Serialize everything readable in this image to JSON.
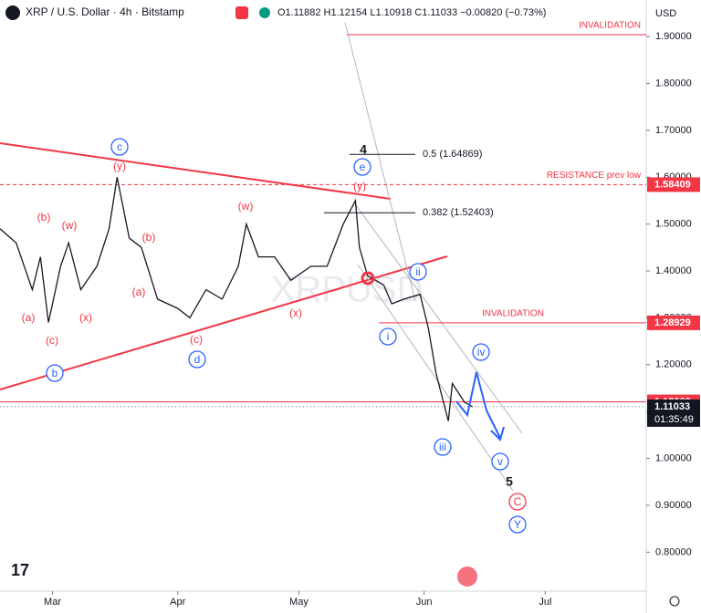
{
  "header": {
    "symbol": "XRP / U.S. Dollar · 4h · Bitstamp",
    "ohlc": "O1.11882 H1.12154 L1.10918 C1.11033 −0.00820 (−0.73%)",
    "watermark": "XRPUSD"
  },
  "chart_data": {
    "type": "line",
    "color": "#131722",
    "x": [
      -13,
      -9,
      -5,
      -3,
      -1,
      2,
      4,
      7,
      11,
      14,
      16,
      19,
      22,
      26,
      31,
      34,
      38,
      42,
      46,
      48,
      51,
      55,
      59,
      64,
      68,
      72,
      75,
      76,
      78,
      82,
      84,
      87,
      91,
      93,
      95,
      98,
      99,
      102,
      104
    ],
    "values": [
      1.49,
      1.46,
      1.36,
      1.43,
      1.29,
      1.41,
      1.46,
      1.36,
      1.41,
      1.49,
      1.6,
      1.47,
      1.45,
      1.34,
      1.32,
      1.3,
      1.36,
      1.34,
      1.41,
      1.5,
      1.43,
      1.43,
      1.38,
      1.41,
      1.41,
      1.5,
      1.55,
      1.45,
      1.39,
      1.37,
      1.33,
      1.34,
      1.35,
      1.28,
      1.18,
      1.08,
      1.16,
      1.12,
      1.11
    ],
    "xlim": [
      -13,
      147
    ],
    "xticks": [
      {
        "value": 0,
        "label": "Mar"
      },
      {
        "value": 31,
        "label": "Apr"
      },
      {
        "value": 61,
        "label": "May"
      },
      {
        "value": 92,
        "label": "Jun"
      },
      {
        "value": 122,
        "label": "Jul"
      }
    ],
    "ylim": [
      0.717,
      1.978
    ],
    "yticks": [
      {
        "value": 1.9,
        "label": "1.90000"
      },
      {
        "value": 1.8,
        "label": "1.80000"
      },
      {
        "value": 1.7,
        "label": "1.70000"
      },
      {
        "value": 1.6,
        "label": "1.60000"
      },
      {
        "value": 1.5,
        "label": "1.50000"
      },
      {
        "value": 1.4,
        "label": "1.40000"
      },
      {
        "value": 1.3,
        "label": "1.30000"
      },
      {
        "value": 1.2,
        "label": "1.20000"
      },
      {
        "value": 1.1,
        "label": "1.10000"
      },
      {
        "value": 1.0,
        "label": "1.00000"
      },
      {
        "value": 0.9,
        "label": "0.90000"
      },
      {
        "value": 0.8,
        "label": "0.80000"
      }
    ],
    "y_axis_label": "USD",
    "levels": [
      {
        "value": 1.904,
        "label": "INVALIDATION",
        "color": "#f23645"
      },
      {
        "value": 1.58409,
        "label": "RESISTANCE prev low",
        "color": "#f23645",
        "badge": true
      },
      {
        "value": 1.28929,
        "label": "INVALIDATION",
        "color": "#f23645",
        "badge": true
      },
      {
        "value": 1.12069,
        "color": "#f23645",
        "badge": true
      },
      {
        "value": 1.11033,
        "color": "#787b86",
        "badge": true,
        "countdown": "01:35:49"
      }
    ],
    "fib": [
      {
        "value": 1.64869,
        "label": "0.5 (1.64869)"
      },
      {
        "value": 1.52403,
        "label": "0.382 (1.52403)"
      }
    ],
    "annotations": [
      {
        "text": "(a)",
        "color": "#f23645"
      },
      {
        "text": "(c)",
        "color": "#f23645"
      },
      {
        "text": "(b)",
        "color": "#f23645"
      },
      {
        "text": "(w)",
        "color": "#f23645"
      },
      {
        "text": "(x)",
        "color": "#f23645"
      },
      {
        "text": "(y)",
        "color": "#f23645"
      },
      {
        "text": "(b)",
        "color": "#f23645"
      },
      {
        "text": "(a)",
        "color": "#f23645"
      },
      {
        "text": "(c)",
        "color": "#f23645"
      },
      {
        "text": "(w)",
        "color": "#f23645"
      },
      {
        "text": "(x)",
        "color": "#f23645"
      },
      {
        "text": "(y)",
        "color": "#f23645"
      },
      {
        "text": "c",
        "color": "#2962ff",
        "circled": true
      },
      {
        "text": "b",
        "color": "#2962ff",
        "circled": true
      },
      {
        "text": "d",
        "color": "#2962ff",
        "circled": true
      },
      {
        "text": "e",
        "color": "#2962ff",
        "circled": true
      },
      {
        "text": "i",
        "color": "#2962ff",
        "circled": true
      },
      {
        "text": "ii",
        "color": "#2962ff",
        "circled": true
      },
      {
        "text": "iii",
        "color": "#2962ff",
        "circled": true
      },
      {
        "text": "iv",
        "color": "#2962ff",
        "circled": true
      },
      {
        "text": "v",
        "color": "#2962ff",
        "circled": true
      },
      {
        "text": "Y",
        "color": "#2962ff",
        "circled": true
      },
      {
        "text": "4",
        "color": "#131722"
      },
      {
        "text": "5",
        "color": "#131722"
      },
      {
        "text": "C",
        "color": "#f23645",
        "circled": true
      }
    ]
  }
}
